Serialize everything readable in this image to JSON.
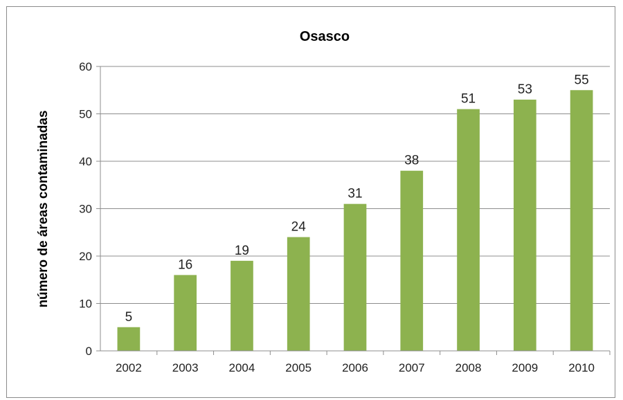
{
  "chart_data": {
    "type": "bar",
    "title": "Osasco",
    "xlabel": "",
    "ylabel": "número de áreas contaminadas",
    "categories": [
      "2002",
      "2003",
      "2004",
      "2005",
      "2006",
      "2007",
      "2008",
      "2009",
      "2010"
    ],
    "values": [
      5,
      16,
      19,
      24,
      31,
      38,
      51,
      53,
      55
    ],
    "ylim": [
      0,
      60
    ],
    "yticks": [
      0,
      10,
      20,
      30,
      40,
      50,
      60
    ],
    "grid": true,
    "legend": "none",
    "bar_color": "#8db24f",
    "grid_color": "#8c8c8c"
  }
}
